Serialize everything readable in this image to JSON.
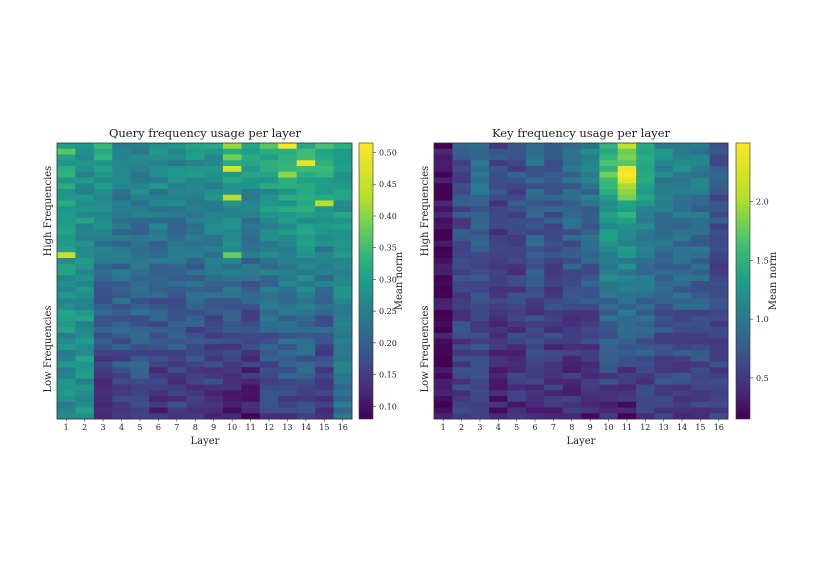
{
  "chart_data": [
    {
      "type": "heatmap",
      "title": "Query frequency usage per layer",
      "xlabel": "Layer",
      "ylabel_top": "High Frequencies",
      "ylabel_bottom": "Low Frequencies",
      "x_tick_labels": [
        "1",
        "2",
        "3",
        "4",
        "5",
        "6",
        "7",
        "8",
        "9",
        "10",
        "11",
        "12",
        "13",
        "14",
        "15",
        "16"
      ],
      "rows": 48,
      "colorbar": {
        "label": "Mean norm",
        "vmin": 0.08,
        "vmax": 0.515,
        "ticks": [
          0.1,
          0.15,
          0.2,
          0.25,
          0.3,
          0.35,
          0.4,
          0.45,
          0.5
        ],
        "tick_labels": [
          "0.10",
          "0.15",
          "0.20",
          "0.25",
          "0.30",
          "0.35",
          "0.40",
          "0.45",
          "0.50"
        ]
      },
      "column_profile_top": [
        0.34,
        0.3,
        0.34,
        0.28,
        0.28,
        0.3,
        0.29,
        0.31,
        0.32,
        0.37,
        0.33,
        0.34,
        0.36,
        0.37,
        0.36,
        0.33
      ],
      "column_profile_bottom": [
        0.28,
        0.3,
        0.12,
        0.17,
        0.17,
        0.13,
        0.15,
        0.13,
        0.13,
        0.1,
        0.1,
        0.15,
        0.16,
        0.17,
        0.13,
        0.24
      ],
      "hotspots": [
        {
          "layer": 10,
          "row": 0,
          "value": 0.45
        },
        {
          "layer": 10,
          "row": 2,
          "value": 0.42
        },
        {
          "layer": 10,
          "row": 4,
          "value": 0.49
        },
        {
          "layer": 10,
          "row": 9,
          "value": 0.47
        },
        {
          "layer": 10,
          "row": 19,
          "value": 0.41
        },
        {
          "layer": 13,
          "row": 0,
          "value": 0.51
        },
        {
          "layer": 13,
          "row": 5,
          "value": 0.44
        },
        {
          "layer": 14,
          "row": 3,
          "value": 0.5
        },
        {
          "layer": 15,
          "row": 10,
          "value": 0.47
        },
        {
          "layer": 1,
          "row": 19,
          "value": 0.48
        },
        {
          "layer": 12,
          "row": 0,
          "value": 0.4
        },
        {
          "layer": 1,
          "row": 1,
          "value": 0.4
        }
      ]
    },
    {
      "type": "heatmap",
      "title": "Key frequency usage per layer",
      "xlabel": "Layer",
      "ylabel_top": "High Frequencies",
      "ylabel_bottom": "Low Frequencies",
      "x_tick_labels": [
        "1",
        "2",
        "3",
        "4",
        "5",
        "6",
        "7",
        "8",
        "9",
        "10",
        "11",
        "12",
        "13",
        "14",
        "15",
        "16"
      ],
      "rows": 48,
      "colorbar": {
        "label": "Mean norm",
        "vmin": 0.15,
        "vmax": 2.5,
        "ticks": [
          0.5,
          1.0,
          1.5,
          2.0
        ],
        "tick_labels": [
          "0.5",
          "1.0",
          "1.5",
          "2.0"
        ]
      },
      "column_profile_top": [
        0.25,
        0.75,
        1.05,
        0.7,
        0.75,
        0.95,
        0.9,
        1.05,
        1.15,
        1.75,
        1.95,
        1.6,
        1.25,
        1.25,
        1.15,
        0.8
      ],
      "column_profile_bottom": [
        0.2,
        0.55,
        0.5,
        0.38,
        0.45,
        0.48,
        0.45,
        0.4,
        0.38,
        0.45,
        0.3,
        0.5,
        0.55,
        0.55,
        0.55,
        0.6
      ],
      "hotspots": [
        {
          "layer": 11,
          "row": 0,
          "value": 2.3
        },
        {
          "layer": 11,
          "row": 4,
          "value": 2.45
        },
        {
          "layer": 11,
          "row": 5,
          "value": 2.5
        },
        {
          "layer": 11,
          "row": 6,
          "value": 2.4
        },
        {
          "layer": 11,
          "row": 7,
          "value": 2.2
        },
        {
          "layer": 11,
          "row": 8,
          "value": 2.1
        },
        {
          "layer": 10,
          "row": 5,
          "value": 2.0
        },
        {
          "layer": 11,
          "row": 9,
          "value": 2.0
        }
      ]
    }
  ]
}
